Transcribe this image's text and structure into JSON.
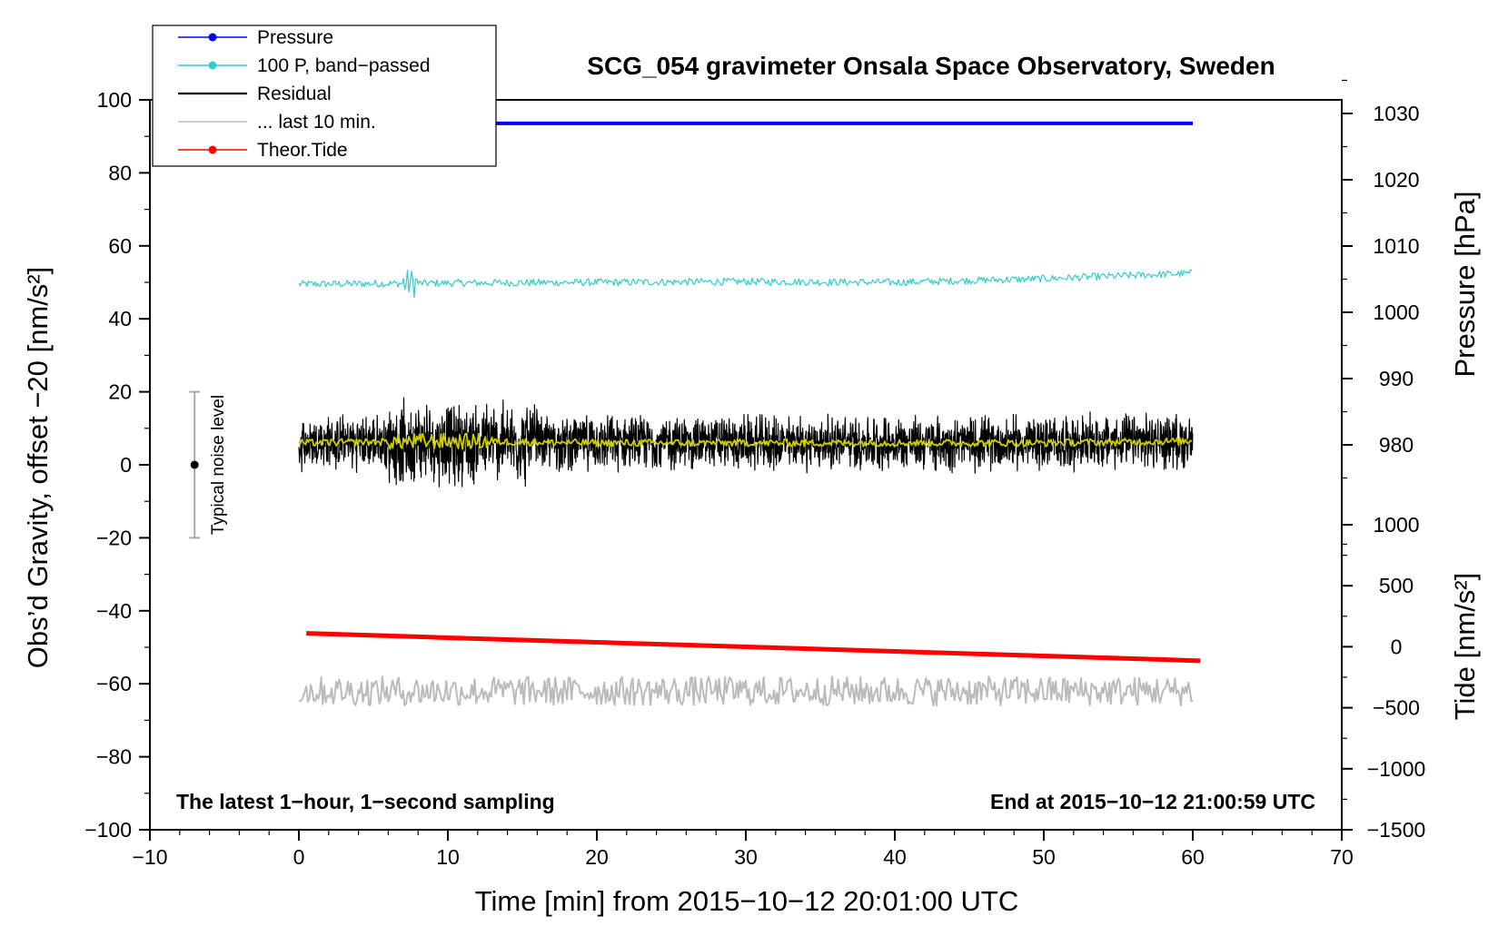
{
  "chart_data": {
    "type": "line",
    "title": "SCG_054 gravimeter Onsala Space Observatory, Sweden",
    "xlabel": "Time [min] from 2015−10−12 20:01:00 UTC",
    "ylabel_left": "Obs’d Gravity, offset −20 [nm/s²]",
    "ylabel_pressure": "Pressure [hPa]",
    "ylabel_tide": "Tide [nm/s²]",
    "xlim": [
      -10,
      70
    ],
    "ylim_left": [
      -100,
      100
    ],
    "pressure_lim": [
      965,
      1035
    ],
    "tide_lim": [
      -1500,
      1000
    ],
    "x_ticks": [
      -10,
      0,
      10,
      20,
      30,
      40,
      50,
      60,
      70
    ],
    "x_tick_labels": [
      "−10",
      "0",
      "10",
      "20",
      "30",
      "40",
      "50",
      "60",
      "70"
    ],
    "y_ticks_left": [
      100,
      80,
      60,
      40,
      20,
      0,
      -20,
      -40,
      -60,
      -80,
      -100
    ],
    "y_tick_labels_left": [
      "100",
      "80",
      "60",
      "40",
      "20",
      "0",
      "−20",
      "−40",
      "−60",
      "−80",
      "−100"
    ],
    "pressure_ticks": [
      1030,
      1020,
      1010,
      1000,
      990,
      980
    ],
    "pressure_tick_labels": [
      "1030",
      "1020",
      "1010",
      "1000",
      "990",
      "980"
    ],
    "tide_ticks": [
      1000,
      500,
      0,
      -500,
      -1000,
      -1500
    ],
    "tide_tick_labels": [
      "1000",
      "500",
      "0",
      "−500",
      "−1000",
      "−1500"
    ],
    "annotation_left": "The latest 1−hour, 1−second sampling",
    "annotation_right": "End at 2015−10−12 21:00:59 UTC",
    "noise_bar": {
      "label": "Typical noise level",
      "x": -7,
      "center": 0,
      "low": -20,
      "high": 20
    },
    "legend": [
      {
        "label": "Pressure",
        "color": "#0000ff",
        "marker": true
      },
      {
        "label": "100 P, band−passed",
        "color": "#33cccc",
        "marker": true
      },
      {
        "label": "Residual",
        "color": "#000000",
        "marker": false
      },
      {
        "label": "... last 10 min.",
        "color": "#bbbbbb",
        "marker": false
      },
      {
        "label": "Theor.Tide",
        "color": "#ff0000",
        "marker": true
      }
    ],
    "series": [
      {
        "name": "Pressure",
        "axis": "pressure",
        "color": "#0000ff",
        "x": [
          0,
          60
        ],
        "y": [
          1028.5,
          1028.5
        ]
      },
      {
        "name": "100 P, band−passed",
        "axis": "left",
        "color": "#33cccc",
        "x": [
          0,
          10,
          20,
          30,
          40,
          50,
          60
        ],
        "y": [
          49.5,
          49.8,
          50.0,
          50.2,
          50.0,
          51.0,
          52.5
        ],
        "noise": 1.0
      },
      {
        "name": "Residual",
        "axis": "left",
        "color": "#000000",
        "x": [
          0,
          10,
          20,
          30,
          40,
          50,
          60
        ],
        "y": [
          6,
          6,
          6,
          6,
          6,
          6,
          6.5
        ],
        "noise": 5
      },
      {
        "name": "Residual (smoothed)",
        "axis": "left",
        "color": "#cccc00",
        "x": [
          0,
          10,
          20,
          30,
          40,
          50,
          60
        ],
        "y": [
          6,
          6.5,
          6,
          6,
          6,
          6,
          6.5
        ],
        "noise": 1
      },
      {
        "name": "... last 10 min.",
        "axis": "left",
        "color": "#bbbbbb",
        "x": [
          0,
          60
        ],
        "y": [
          -62,
          -62
        ],
        "noise": 4
      },
      {
        "name": "Theor.Tide",
        "axis": "tide",
        "color": "#ff0000",
        "x": [
          0.5,
          60.5
        ],
        "y": [
          110,
          -115
        ]
      }
    ]
  },
  "colors": {
    "pressure": "#0000ff",
    "bandpassed": "#33cccc",
    "residual": "#000000",
    "smoothed": "#cccc00",
    "last10": "#bbbbbb",
    "tide": "#ff0000"
  }
}
